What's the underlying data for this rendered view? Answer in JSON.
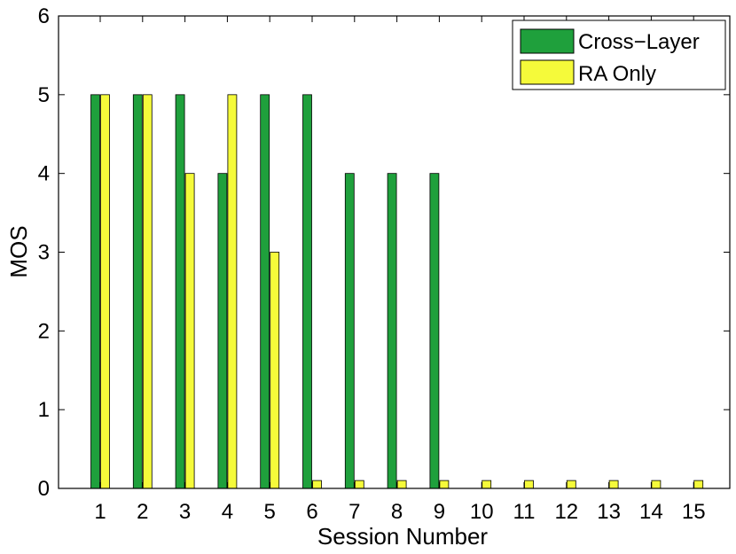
{
  "chart_data": {
    "type": "bar",
    "title": "",
    "xlabel": "Session Number",
    "ylabel": "MOS",
    "categories": [
      "1",
      "2",
      "3",
      "4",
      "5",
      "6",
      "7",
      "8",
      "9",
      "10",
      "11",
      "12",
      "13",
      "14",
      "15"
    ],
    "ylim": [
      0,
      6
    ],
    "yticks": [
      "0",
      "1",
      "2",
      "3",
      "4",
      "5",
      "6"
    ],
    "grid": false,
    "legend_position": "top-right",
    "series": [
      {
        "name": "Cross−Layer",
        "color": "#1fa03c",
        "values": [
          5,
          5,
          5,
          4,
          5,
          5,
          4,
          4,
          4,
          0,
          0,
          0,
          0,
          0,
          0
        ]
      },
      {
        "name": "RA Only",
        "color": "#f5fa3a",
        "values": [
          5,
          5,
          4,
          5,
          3,
          0.1,
          0.1,
          0.1,
          0.1,
          0.1,
          0.1,
          0.1,
          0.1,
          0.1,
          0.1
        ]
      }
    ]
  }
}
